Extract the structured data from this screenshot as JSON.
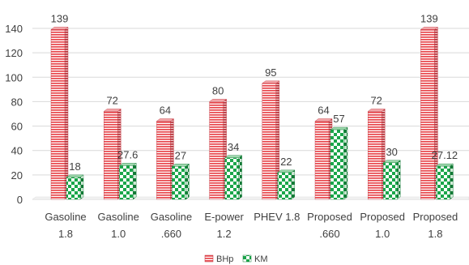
{
  "chart_data": {
    "type": "bar",
    "style": "3d-clustered-column",
    "categories": [
      [
        "Gasoline",
        "1.8"
      ],
      [
        "Gasoline",
        "1.0"
      ],
      [
        "Gasoline",
        ".660"
      ],
      [
        "E-power",
        "1.2"
      ],
      [
        "PHEV 1.8"
      ],
      [
        "Proposed",
        ".660"
      ],
      [
        "Proposed",
        "1.0"
      ],
      [
        "Proposed",
        "1.8"
      ]
    ],
    "series": [
      {
        "name": "BHp",
        "values": [
          139,
          72,
          64,
          80,
          95,
          64,
          72,
          139
        ],
        "labels": [
          "139",
          "72",
          "64",
          "80",
          "95",
          "64",
          "72",
          "139"
        ],
        "pattern": "horizontal-stripes",
        "color": "#e8474d"
      },
      {
        "name": "KM",
        "values": [
          18,
          27.6,
          27,
          34,
          22,
          57,
          30,
          27.12
        ],
        "labels": [
          "18",
          "27.6",
          "27",
          "34",
          "22",
          "57",
          "30",
          "27.12"
        ],
        "pattern": "checkerboard",
        "color": "#1aa64a"
      }
    ],
    "yticks": [
      "0",
      "20",
      "40",
      "60",
      "80",
      "100",
      "120",
      "140"
    ],
    "ylim": [
      0,
      140
    ],
    "grid": true,
    "legend_position": "bottom"
  }
}
